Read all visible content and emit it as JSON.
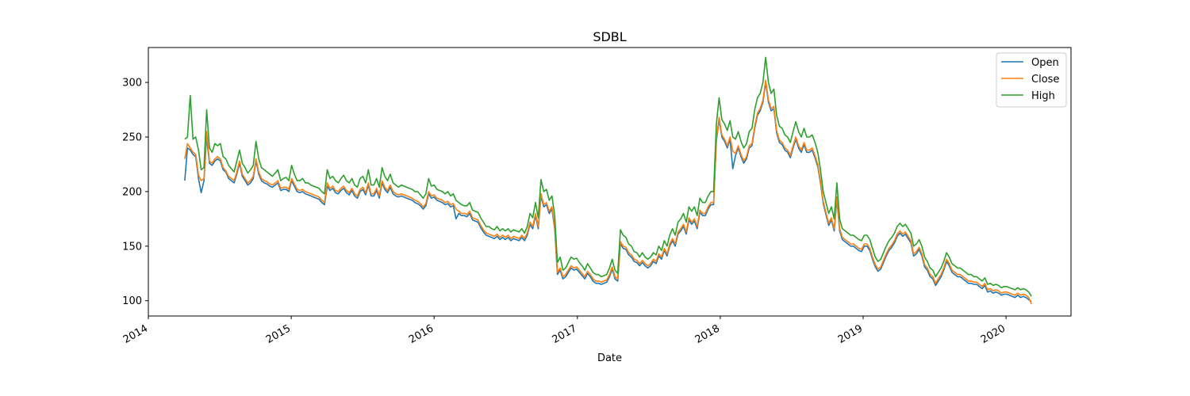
{
  "chart_data": {
    "type": "line",
    "title": "SDBL",
    "xlabel": "Date",
    "ylabel": "",
    "x_is_date": true,
    "xlim": [
      "2014-01-01",
      "2020-06-15"
    ],
    "ylim": [
      86,
      332
    ],
    "x_ticks": [
      "2014",
      "2015",
      "2016",
      "2017",
      "2018",
      "2019",
      "2020"
    ],
    "y_ticks": [
      100,
      150,
      200,
      250,
      300
    ],
    "grid": false,
    "legend_position": "top-right",
    "series": [
      {
        "name": "Open",
        "color": "#1f77b4"
      },
      {
        "name": "Close",
        "color": "#ff7f0e"
      },
      {
        "name": "High",
        "color": "#2ca02c"
      }
    ],
    "x": [
      "2014-04-04",
      "2014-04-11",
      "2014-04-18",
      "2014-04-25",
      "2014-05-02",
      "2014-05-09",
      "2014-05-16",
      "2014-05-23",
      "2014-05-30",
      "2014-06-06",
      "2014-06-13",
      "2014-06-20",
      "2014-06-27",
      "2014-07-04",
      "2014-07-11",
      "2014-07-18",
      "2014-07-25",
      "2014-08-01",
      "2014-08-08",
      "2014-08-15",
      "2014-08-22",
      "2014-08-29",
      "2014-09-05",
      "2014-09-12",
      "2014-09-19",
      "2014-09-26",
      "2014-10-03",
      "2014-10-10",
      "2014-10-17",
      "2014-10-24",
      "2014-10-31",
      "2014-11-07",
      "2014-11-14",
      "2014-11-21",
      "2014-11-28",
      "2014-12-05",
      "2014-12-12",
      "2014-12-19",
      "2014-12-26",
      "2015-01-02",
      "2015-01-09",
      "2015-01-16",
      "2015-01-23",
      "2015-01-30",
      "2015-02-06",
      "2015-02-13",
      "2015-02-20",
      "2015-02-27",
      "2015-03-06",
      "2015-03-13",
      "2015-03-20",
      "2015-03-27",
      "2015-04-03",
      "2015-04-10",
      "2015-04-17",
      "2015-04-24",
      "2015-05-01",
      "2015-05-08",
      "2015-05-15",
      "2015-05-22",
      "2015-05-29",
      "2015-06-05",
      "2015-06-12",
      "2015-06-19",
      "2015-06-26",
      "2015-07-03",
      "2015-07-10",
      "2015-07-17",
      "2015-07-24",
      "2015-07-31",
      "2015-08-07",
      "2015-08-14",
      "2015-08-21",
      "2015-08-28",
      "2015-09-04",
      "2015-09-11",
      "2015-09-18",
      "2015-09-25",
      "2015-10-02",
      "2015-10-09",
      "2015-10-16",
      "2015-10-23",
      "2015-10-30",
      "2015-11-06",
      "2015-11-13",
      "2015-11-20",
      "2015-11-27",
      "2015-12-04",
      "2015-12-11",
      "2015-12-18",
      "2015-12-25",
      "2016-01-01",
      "2016-01-08",
      "2016-01-15",
      "2016-01-22",
      "2016-01-29",
      "2016-02-05",
      "2016-02-12",
      "2016-02-19",
      "2016-02-26",
      "2016-03-04",
      "2016-03-11",
      "2016-03-18",
      "2016-03-25",
      "2016-04-01",
      "2016-04-08",
      "2016-04-15",
      "2016-04-22",
      "2016-04-29",
      "2016-05-06",
      "2016-05-13",
      "2016-05-20",
      "2016-05-27",
      "2016-06-03",
      "2016-06-10",
      "2016-06-17",
      "2016-06-24",
      "2016-07-01",
      "2016-07-08",
      "2016-07-15",
      "2016-07-22",
      "2016-07-29",
      "2016-08-05",
      "2016-08-12",
      "2016-08-19",
      "2016-08-26",
      "2016-09-02",
      "2016-09-09",
      "2016-09-16",
      "2016-09-23",
      "2016-09-30",
      "2016-10-07",
      "2016-10-14",
      "2016-10-21",
      "2016-10-28",
      "2016-11-04",
      "2016-11-11",
      "2016-11-18",
      "2016-11-25",
      "2016-12-02",
      "2016-12-09",
      "2016-12-16",
      "2016-12-23",
      "2016-12-30",
      "2017-01-06",
      "2017-01-13",
      "2017-01-20",
      "2017-01-27",
      "2017-02-03",
      "2017-02-10",
      "2017-02-17",
      "2017-02-24",
      "2017-03-03",
      "2017-03-10",
      "2017-03-17",
      "2017-03-24",
      "2017-03-31",
      "2017-04-07",
      "2017-04-14",
      "2017-04-21",
      "2017-04-28",
      "2017-05-05",
      "2017-05-12",
      "2017-05-19",
      "2017-05-26",
      "2017-06-02",
      "2017-06-09",
      "2017-06-16",
      "2017-06-23",
      "2017-06-30",
      "2017-07-07",
      "2017-07-14",
      "2017-07-21",
      "2017-07-28",
      "2017-08-04",
      "2017-08-11",
      "2017-08-18",
      "2017-08-25",
      "2017-09-01",
      "2017-09-08",
      "2017-09-15",
      "2017-09-22",
      "2017-09-29",
      "2017-10-06",
      "2017-10-13",
      "2017-10-20",
      "2017-10-27",
      "2017-11-03",
      "2017-11-10",
      "2017-11-17",
      "2017-11-24",
      "2017-12-01",
      "2017-12-08",
      "2017-12-15",
      "2017-12-22",
      "2017-12-29",
      "2018-01-05",
      "2018-01-12",
      "2018-01-19",
      "2018-01-26",
      "2018-02-02",
      "2018-02-09",
      "2018-02-16",
      "2018-02-23",
      "2018-03-02",
      "2018-03-09",
      "2018-03-16",
      "2018-03-23",
      "2018-03-30",
      "2018-04-06",
      "2018-04-13",
      "2018-04-20",
      "2018-04-27",
      "2018-05-04",
      "2018-05-11",
      "2018-05-18",
      "2018-05-25",
      "2018-06-01",
      "2018-06-08",
      "2018-06-15",
      "2018-06-22",
      "2018-06-29",
      "2018-07-06",
      "2018-07-13",
      "2018-07-20",
      "2018-07-27",
      "2018-08-03",
      "2018-08-10",
      "2018-08-17",
      "2018-08-24",
      "2018-08-31",
      "2018-09-07",
      "2018-09-14",
      "2018-09-21",
      "2018-09-28",
      "2018-10-05",
      "2018-10-12",
      "2018-10-19",
      "2018-10-26",
      "2018-11-02",
      "2018-11-09",
      "2018-11-16",
      "2018-11-23",
      "2018-11-30",
      "2018-12-07",
      "2018-12-14",
      "2018-12-21",
      "2018-12-28",
      "2019-01-04",
      "2019-01-11",
      "2019-01-18",
      "2019-01-25",
      "2019-02-01",
      "2019-02-08",
      "2019-02-15",
      "2019-02-22",
      "2019-03-01",
      "2019-03-08",
      "2019-03-15",
      "2019-03-22",
      "2019-03-29",
      "2019-04-05",
      "2019-04-12",
      "2019-04-19",
      "2019-04-26",
      "2019-05-03",
      "2019-05-10",
      "2019-05-17",
      "2019-05-24",
      "2019-05-31",
      "2019-06-07",
      "2019-06-14",
      "2019-06-21",
      "2019-06-28",
      "2019-07-05",
      "2019-07-12",
      "2019-07-19",
      "2019-07-26",
      "2019-08-02",
      "2019-08-09",
      "2019-08-16",
      "2019-08-23",
      "2019-08-30",
      "2019-09-06",
      "2019-09-13",
      "2019-09-20",
      "2019-09-27",
      "2019-10-04",
      "2019-10-11",
      "2019-10-18",
      "2019-10-25",
      "2019-11-01",
      "2019-11-08",
      "2019-11-15",
      "2019-11-22",
      "2019-11-29",
      "2019-12-06",
      "2019-12-13",
      "2019-12-20",
      "2019-12-27",
      "2020-01-03",
      "2020-01-10",
      "2020-01-17",
      "2020-01-24",
      "2020-01-31",
      "2020-02-07",
      "2020-02-14",
      "2020-02-21",
      "2020-02-28",
      "2020-03-06"
    ],
    "high": [
      248,
      250,
      288,
      248,
      250,
      238,
      220,
      222,
      275,
      240,
      236,
      244,
      242,
      244,
      232,
      230,
      224,
      221,
      218,
      228,
      238,
      226,
      222,
      217,
      220,
      224,
      246,
      230,
      222,
      220,
      218,
      216,
      214,
      217,
      220,
      210,
      212,
      213,
      210,
      224,
      216,
      210,
      210,
      212,
      208,
      208,
      206,
      205,
      204,
      203,
      200,
      198,
      220,
      212,
      214,
      210,
      208,
      212,
      215,
      210,
      208,
      212,
      206,
      204,
      212,
      214,
      208,
      220,
      206,
      206,
      212,
      204,
      222,
      214,
      210,
      216,
      208,
      206,
      204,
      206,
      205,
      204,
      203,
      202,
      200,
      200,
      197,
      194,
      198,
      212,
      205,
      206,
      202,
      201,
      200,
      198,
      200,
      196,
      198,
      192,
      190,
      188,
      187,
      187,
      190,
      183,
      182,
      181,
      176,
      172,
      168,
      168,
      166,
      165,
      168,
      164,
      166,
      164,
      166,
      163,
      165,
      164,
      163,
      166,
      162,
      168,
      180,
      176,
      190,
      176,
      211,
      200,
      202,
      192,
      196,
      178,
      135,
      140,
      128,
      130,
      135,
      140,
      138,
      139,
      135,
      132,
      128,
      134,
      130,
      126,
      124,
      124,
      122,
      123,
      124,
      130,
      138,
      128,
      125,
      165,
      160,
      158,
      152,
      150,
      145,
      144,
      140,
      144,
      140,
      138,
      140,
      144,
      142,
      150,
      146,
      155,
      150,
      160,
      166,
      160,
      172,
      175,
      180,
      172,
      186,
      182,
      186,
      178,
      194,
      190,
      190,
      196,
      200,
      200,
      262,
      286,
      266,
      262,
      256,
      265,
      250,
      248,
      255,
      246,
      240,
      244,
      255,
      258,
      275,
      286,
      290,
      300,
      323,
      300,
      290,
      294,
      270,
      260,
      258,
      252,
      250,
      245,
      255,
      264,
      255,
      250,
      258,
      250,
      250,
      252,
      245,
      236,
      220,
      200,
      190,
      180,
      186,
      175,
      208,
      175,
      166,
      164,
      162,
      160,
      160,
      158,
      156,
      155,
      160,
      160,
      156,
      148,
      140,
      136,
      138,
      144,
      150,
      155,
      158,
      162,
      168,
      171,
      168,
      170,
      166,
      162,
      150,
      152,
      156,
      150,
      140,
      136,
      130,
      128,
      122,
      126,
      130,
      136,
      144,
      140,
      134,
      132,
      130,
      130,
      128,
      126,
      124,
      124,
      122,
      122,
      120,
      118,
      121,
      115,
      116,
      114,
      115,
      114,
      112,
      113,
      113,
      112,
      111,
      110,
      112,
      110,
      111,
      110,
      108,
      104
    ],
    "close": [
      230,
      244,
      240,
      236,
      234,
      215,
      210,
      212,
      255,
      228,
      226,
      230,
      232,
      230,
      222,
      219,
      214,
      212,
      210,
      218,
      228,
      216,
      212,
      208,
      210,
      214,
      230,
      218,
      212,
      210,
      209,
      207,
      206,
      208,
      210,
      203,
      204,
      204,
      202,
      212,
      207,
      202,
      201,
      202,
      200,
      199,
      198,
      197,
      196,
      195,
      192,
      190,
      208,
      203,
      205,
      201,
      200,
      203,
      205,
      201,
      199,
      203,
      198,
      196,
      202,
      204,
      199,
      208,
      198,
      198,
      203,
      196,
      210,
      204,
      201,
      206,
      200,
      198,
      197,
      198,
      197,
      196,
      195,
      194,
      192,
      191,
      189,
      186,
      189,
      200,
      196,
      197,
      194,
      193,
      192,
      190,
      191,
      188,
      189,
      184,
      182,
      180,
      180,
      179,
      182,
      176,
      175,
      174,
      169,
      165,
      162,
      161,
      160,
      159,
      161,
      158,
      160,
      158,
      160,
      157,
      159,
      158,
      157,
      160,
      157,
      162,
      172,
      168,
      180,
      168,
      198,
      188,
      190,
      182,
      186,
      168,
      126,
      130,
      122,
      124,
      128,
      132,
      130,
      131,
      128,
      125,
      122,
      127,
      124,
      120,
      118,
      118,
      117,
      118,
      119,
      124,
      131,
      122,
      120,
      154,
      150,
      149,
      144,
      142,
      138,
      137,
      134,
      137,
      134,
      132,
      134,
      138,
      136,
      143,
      140,
      148,
      143,
      152,
      157,
      152,
      163,
      166,
      170,
      163,
      176,
      172,
      175,
      168,
      183,
      180,
      180,
      186,
      190,
      190,
      248,
      268,
      252,
      248,
      242,
      250,
      237,
      235,
      242,
      234,
      228,
      232,
      242,
      244,
      260,
      272,
      276,
      284,
      302,
      284,
      276,
      278,
      256,
      247,
      245,
      240,
      238,
      233,
      242,
      250,
      242,
      238,
      245,
      238,
      238,
      240,
      233,
      225,
      210,
      191,
      181,
      171,
      176,
      166,
      195,
      166,
      158,
      156,
      154,
      152,
      152,
      150,
      148,
      147,
      152,
      152,
      148,
      140,
      133,
      129,
      131,
      137,
      143,
      148,
      151,
      155,
      161,
      164,
      161,
      163,
      159,
      155,
      143,
      145,
      149,
      143,
      133,
      130,
      124,
      122,
      116,
      120,
      124,
      130,
      138,
      134,
      128,
      126,
      124,
      124,
      122,
      120,
      118,
      118,
      117,
      117,
      115,
      113,
      116,
      110,
      111,
      109,
      110,
      109,
      107,
      108,
      108,
      107,
      106,
      105,
      107,
      105,
      106,
      105,
      103,
      97
    ],
    "open": [
      210,
      240,
      238,
      234,
      232,
      212,
      199,
      210,
      250,
      226,
      224,
      228,
      230,
      228,
      220,
      218,
      212,
      210,
      208,
      216,
      226,
      214,
      210,
      206,
      208,
      212,
      228,
      216,
      210,
      208,
      207,
      205,
      204,
      206,
      208,
      201,
      202,
      202,
      200,
      210,
      205,
      200,
      199,
      200,
      198,
      197,
      196,
      195,
      194,
      193,
      190,
      188,
      205,
      201,
      203,
      199,
      198,
      201,
      203,
      199,
      197,
      201,
      196,
      194,
      200,
      202,
      197,
      206,
      196,
      196,
      201,
      194,
      208,
      202,
      199,
      204,
      198,
      196,
      195,
      196,
      195,
      194,
      193,
      192,
      190,
      189,
      187,
      184,
      187,
      198,
      194,
      195,
      192,
      191,
      190,
      188,
      189,
      186,
      187,
      175,
      180,
      178,
      178,
      177,
      180,
      174,
      173,
      172,
      167,
      163,
      160,
      159,
      158,
      157,
      159,
      156,
      158,
      156,
      158,
      155,
      157,
      156,
      155,
      158,
      155,
      160,
      170,
      166,
      178,
      166,
      196,
      186,
      188,
      180,
      184,
      166,
      124,
      128,
      120,
      122,
      126,
      130,
      128,
      129,
      126,
      123,
      120,
      125,
      122,
      118,
      116,
      116,
      115,
      116,
      117,
      122,
      129,
      120,
      118,
      152,
      148,
      147,
      142,
      140,
      136,
      135,
      132,
      135,
      132,
      130,
      132,
      136,
      134,
      141,
      138,
      146,
      141,
      150,
      155,
      150,
      161,
      164,
      168,
      161,
      174,
      170,
      173,
      166,
      181,
      178,
      178,
      184,
      188,
      188,
      246,
      266,
      250,
      246,
      240,
      248,
      221,
      233,
      240,
      232,
      226,
      230,
      240,
      242,
      258,
      270,
      274,
      282,
      300,
      282,
      274,
      276,
      254,
      245,
      243,
      238,
      236,
      231,
      240,
      248,
      240,
      236,
      243,
      236,
      236,
      238,
      231,
      223,
      208,
      189,
      179,
      169,
      174,
      164,
      193,
      164,
      156,
      154,
      152,
      150,
      150,
      148,
      146,
      145,
      150,
      150,
      146,
      138,
      131,
      127,
      129,
      135,
      141,
      146,
      149,
      153,
      159,
      162,
      159,
      161,
      157,
      153,
      141,
      143,
      147,
      141,
      131,
      128,
      122,
      120,
      114,
      118,
      122,
      128,
      136,
      132,
      126,
      124,
      122,
      122,
      120,
      118,
      116,
      116,
      115,
      115,
      113,
      111,
      114,
      108,
      109,
      107,
      108,
      107,
      105,
      106,
      106,
      105,
      104,
      103,
      105,
      103,
      104,
      103,
      101,
      99
    ]
  }
}
